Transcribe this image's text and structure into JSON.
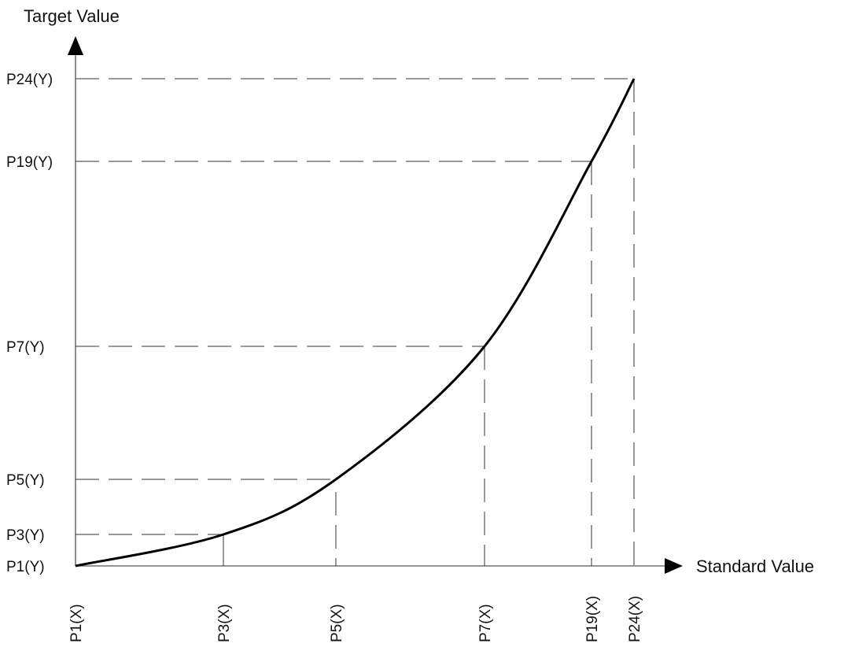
{
  "chart_data": {
    "type": "line",
    "y_axis_title": "Target Value",
    "x_axis_title": "Standard Value",
    "points": [
      {
        "name": "P1",
        "x_label": "P1(X)",
        "y_label": "P1(Y)"
      },
      {
        "name": "P3",
        "x_label": "P3(X)",
        "y_label": "P3(Y)"
      },
      {
        "name": "P5",
        "x_label": "P5(X)",
        "y_label": "P5(Y)"
      },
      {
        "name": "P7",
        "x_label": "P7(X)",
        "y_label": "P7(Y)"
      },
      {
        "name": "P19",
        "x_label": "P19(X)",
        "y_label": "P19(Y)"
      },
      {
        "name": "P24",
        "x_label": "P24(X)",
        "y_label": "P24(Y)"
      }
    ],
    "grid": false,
    "colors": {
      "curve": "#000000",
      "guides": "#333333",
      "axes": "#555555"
    }
  }
}
